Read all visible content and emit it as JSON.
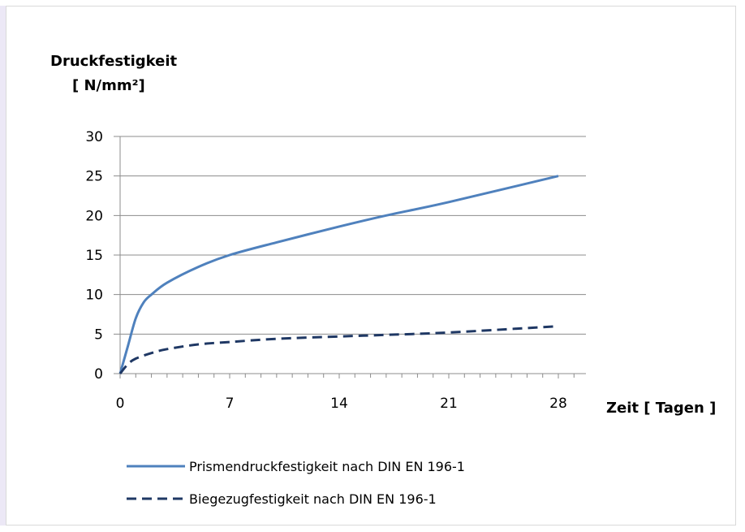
{
  "chart_data": {
    "type": "line",
    "ylabel": "Druckfestigkeit",
    "ylabel_unit": "[ N/mm²]",
    "xlabel": "Zeit [ Tagen ]",
    "xlim": [
      0,
      28
    ],
    "ylim": [
      0,
      30
    ],
    "x_ticks": [
      0,
      7,
      14,
      21,
      28
    ],
    "y_ticks": [
      0,
      5,
      10,
      15,
      20,
      25,
      30
    ],
    "grid": "horizontal",
    "legend_position": "bottom",
    "series": [
      {
        "name": "Prismendruckfestigkeit nach DIN EN 196-1",
        "color": "#4f81bd",
        "style": "solid",
        "x": [
          0,
          0.5,
          1,
          1.5,
          2,
          3,
          5,
          7,
          10,
          14,
          17,
          21,
          28
        ],
        "y": [
          0,
          3.5,
          7,
          9,
          10,
          11.5,
          13.5,
          15,
          16.6,
          18.6,
          20,
          21.7,
          25
        ]
      },
      {
        "name": "Biegezugfestigkeit nach DIN EN 196-1",
        "color": "#1f3864",
        "style": "dashed",
        "x": [
          0,
          0.5,
          1,
          2,
          3,
          5,
          7,
          10,
          14,
          17,
          21,
          28
        ],
        "y": [
          0,
          1.2,
          1.9,
          2.6,
          3.1,
          3.7,
          4.0,
          4.4,
          4.7,
          4.9,
          5.2,
          6.0
        ]
      }
    ]
  }
}
